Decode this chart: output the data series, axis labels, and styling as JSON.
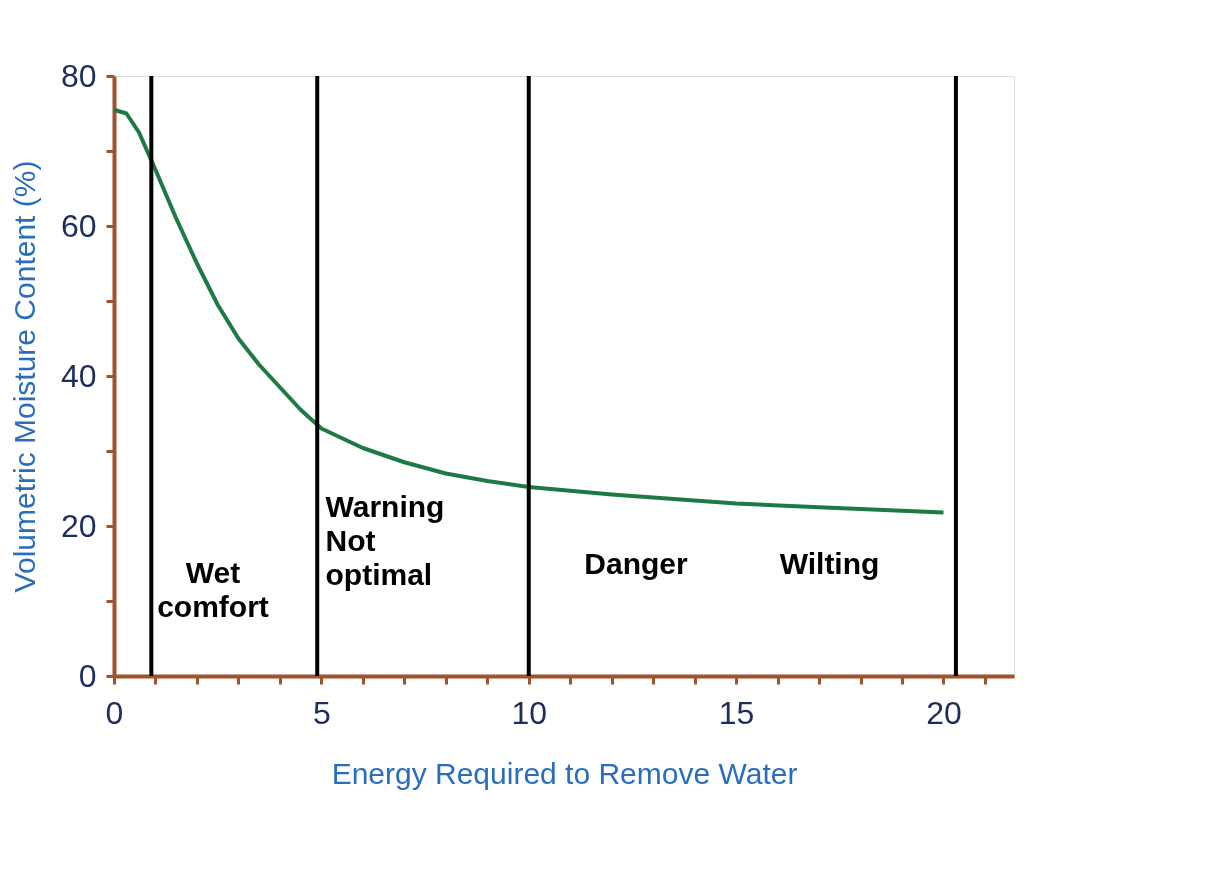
{
  "chart_data": {
    "type": "line",
    "xlabel": "Energy Required to Remove Water",
    "ylabel": "Volumetric Moisture Content (%)",
    "x": [
      0,
      0.3,
      0.6,
      1,
      1.5,
      2,
      2.5,
      3,
      3.5,
      4,
      4.5,
      5,
      6,
      7,
      8,
      9,
      10,
      12,
      14,
      15,
      17,
      20
    ],
    "series": [
      {
        "color": "#1e7a45",
        "values": [
          75.5,
          75,
          72.5,
          67.5,
          61,
          55,
          49.5,
          45,
          41.5,
          38.5,
          35.5,
          33,
          30.4,
          28.5,
          27,
          26,
          25.2,
          24.2,
          23.4,
          23,
          22.5,
          21.8
        ]
      }
    ],
    "xlim": [
      0,
      21.7
    ],
    "ylim": [
      0,
      80
    ],
    "xticks": [
      0,
      {
        "value": 1,
        "label": null
      },
      {
        "value": 2,
        "label": null
      },
      {
        "value": 3,
        "label": null
      },
      {
        "value": 4,
        "label": null
      },
      5,
      {
        "value": 6,
        "label": null
      },
      {
        "value": 7,
        "label": null
      },
      {
        "value": 8,
        "label": null
      },
      {
        "value": 9,
        "label": null
      },
      10,
      {
        "value": 11,
        "label": null
      },
      {
        "value": 12,
        "label": null
      },
      {
        "value": 13,
        "label": null
      },
      {
        "value": 14,
        "label": null
      },
      15,
      {
        "value": 16,
        "label": null
      },
      {
        "value": 17,
        "label": null
      },
      {
        "value": 18,
        "label": null
      },
      {
        "value": 19,
        "label": null
      },
      20,
      {
        "value": 21,
        "label": null
      }
    ],
    "yticks": [
      0,
      {
        "value": 10,
        "label": null
      },
      20,
      {
        "value": 30,
        "label": null
      },
      40,
      {
        "value": 50,
        "label": null
      },
      60,
      {
        "value": 70,
        "label": null
      },
      80
    ],
    "ref_lines": [
      {
        "axis": "x",
        "value": 0.9,
        "label": null,
        "color": "#000000"
      },
      {
        "axis": "x",
        "value": 4.9,
        "label": null,
        "color": "#000000"
      },
      {
        "axis": "x",
        "value": 10,
        "label": null,
        "color": "#000000"
      },
      {
        "axis": "x",
        "value": 20.3,
        "label": null,
        "color": "#000000"
      }
    ],
    "annotations": [
      "Wet\ncomfort",
      "Warning\nNot\noptimal",
      "Danger",
      "Wilting"
    ],
    "grid": false,
    "marker": "none",
    "line_style": "solid"
  }
}
